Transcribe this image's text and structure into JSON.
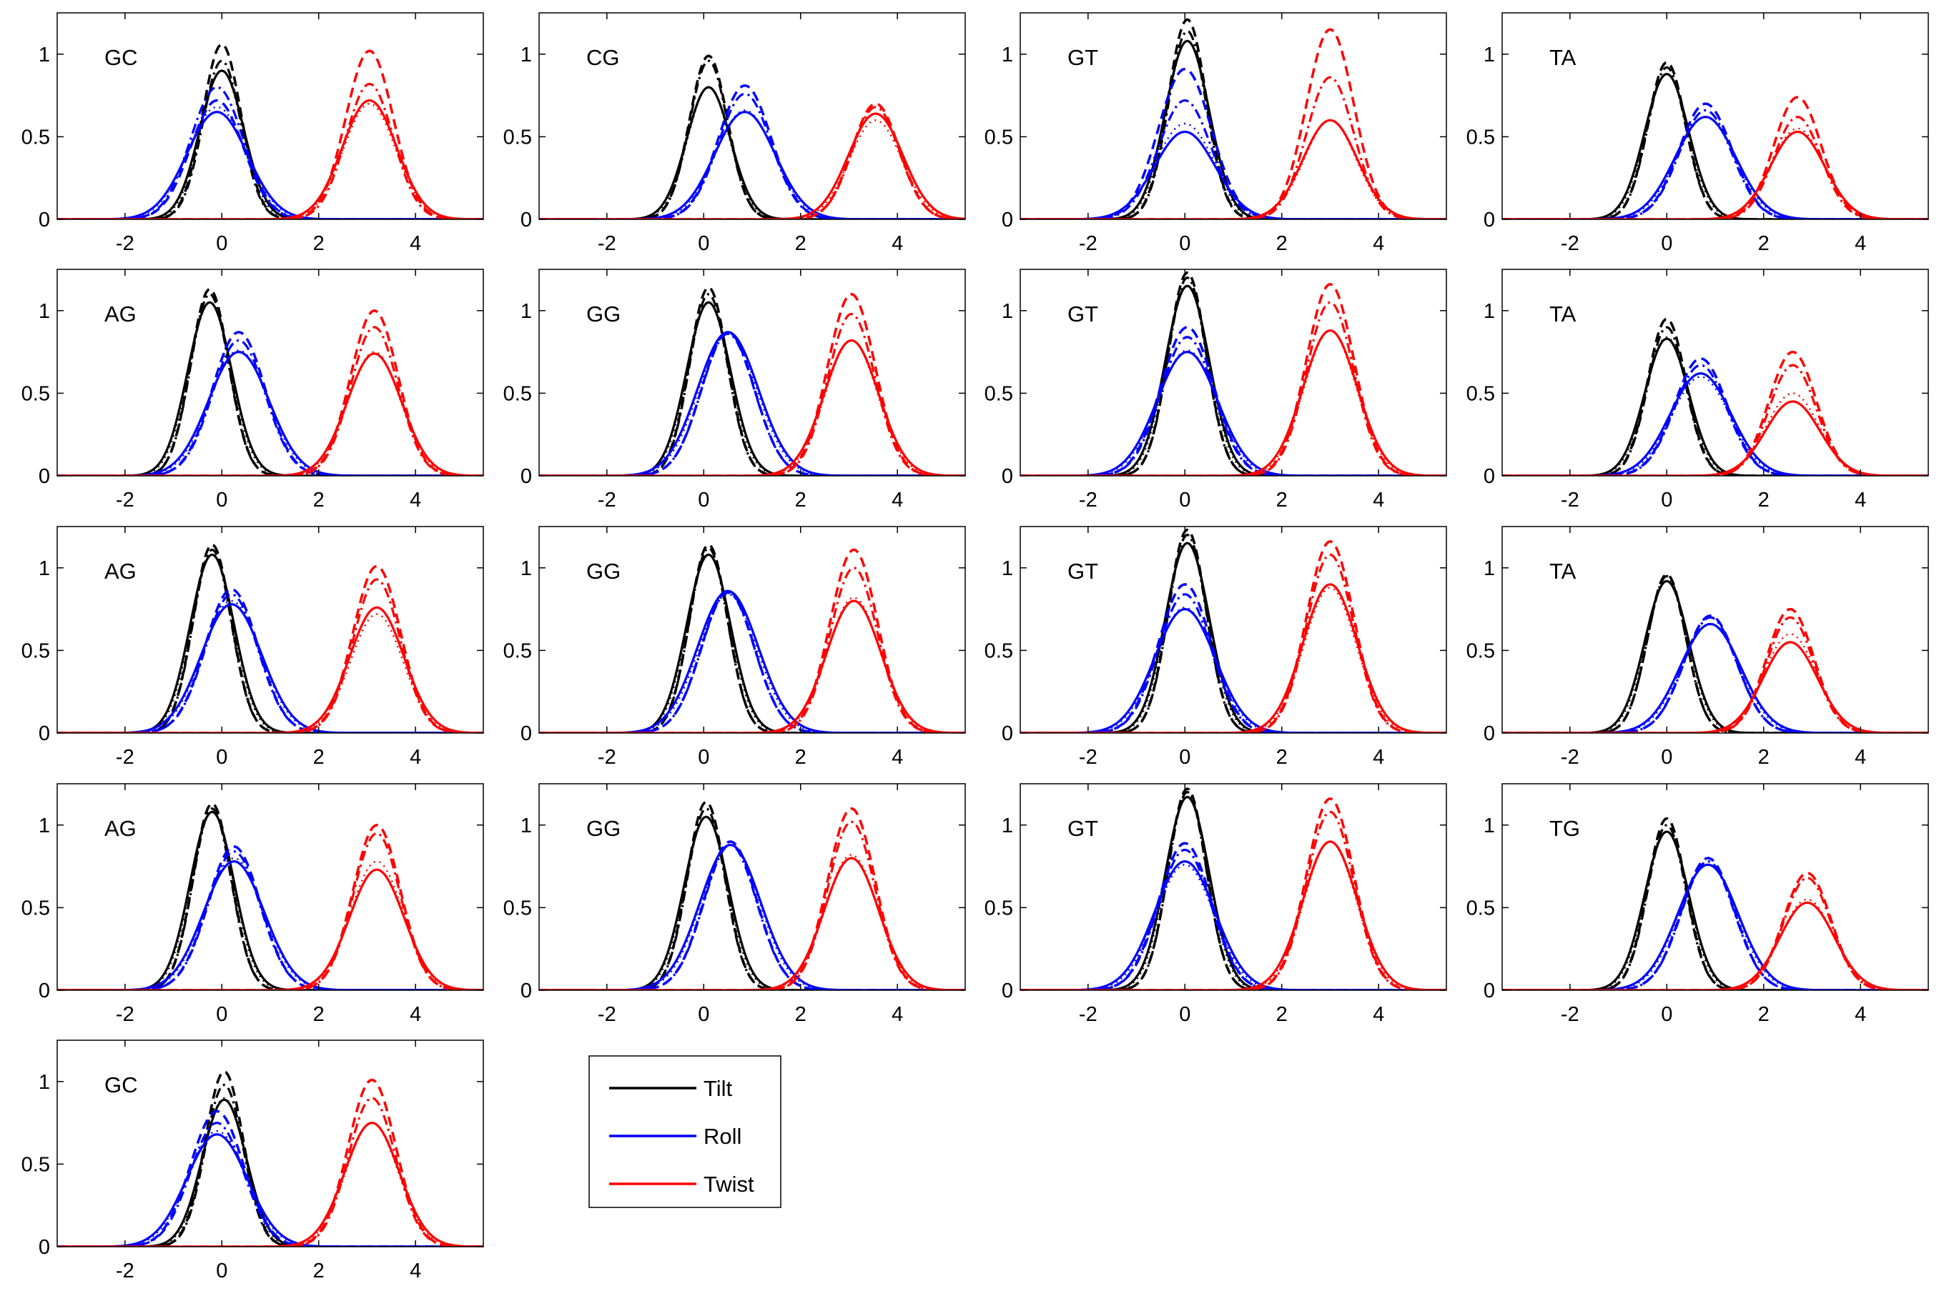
{
  "figure": {
    "colors": {
      "tilt": "#000000",
      "roll": "#0000ff",
      "twist": "#ff0000",
      "axis": "#000000"
    },
    "legend": [
      {
        "key": "tilt",
        "label": "Tilt"
      },
      {
        "key": "roll",
        "label": "Roll"
      },
      {
        "key": "twist",
        "label": "Twist"
      }
    ],
    "x_ticks": [
      "-2",
      "0",
      "2",
      "4"
    ],
    "y_ticks": [
      "0",
      "0.5",
      "1"
    ]
  },
  "chart_data": [
    {
      "type": "line",
      "title": "GC",
      "xlim": [
        -3.4,
        5.4
      ],
      "ylim": [
        0,
        1.25
      ],
      "series": [
        {
          "name": "Tilt",
          "mu": 0.0,
          "peaks": {
            "solid": 0.9,
            "dashed": 1.06,
            "dashdot": 0.96,
            "dotted": 0.9
          }
        },
        {
          "name": "Roll",
          "mu": -0.1,
          "peaks": {
            "solid": 0.65,
            "dashed": 0.72,
            "dashdot": 0.8,
            "dotted": 0.68
          }
        },
        {
          "name": "Twist",
          "mu": 3.05,
          "peaks": {
            "solid": 0.72,
            "dashed": 1.02,
            "dashdot": 0.82,
            "dotted": 0.7
          }
        }
      ]
    },
    {
      "type": "line",
      "title": "CG",
      "xlim": [
        -3.4,
        5.4
      ],
      "ylim": [
        0,
        1.25
      ],
      "series": [
        {
          "name": "Tilt",
          "mu": 0.1,
          "peaks": {
            "solid": 0.8,
            "dashed": 0.99,
            "dashdot": 0.96,
            "dotted": 0.8
          }
        },
        {
          "name": "Roll",
          "mu": 0.85,
          "peaks": {
            "solid": 0.65,
            "dashed": 0.81,
            "dashdot": 0.76,
            "dotted": 0.66
          }
        },
        {
          "name": "Twist",
          "mu": 3.55,
          "peaks": {
            "solid": 0.64,
            "dashed": 0.7,
            "dashdot": 0.68,
            "dotted": 0.6
          }
        }
      ]
    },
    {
      "type": "line",
      "title": "GT",
      "xlim": [
        -3.4,
        5.4
      ],
      "ylim": [
        0,
        1.25
      ],
      "series": [
        {
          "name": "Tilt",
          "mu": 0.05,
          "peaks": {
            "solid": 1.08,
            "dashed": 1.21,
            "dashdot": 1.14,
            "dotted": 1.08
          }
        },
        {
          "name": "Roll",
          "mu": 0.0,
          "peaks": {
            "solid": 0.53,
            "dashed": 0.91,
            "dashdot": 0.72,
            "dotted": 0.58
          }
        },
        {
          "name": "Twist",
          "mu": 3.0,
          "peaks": {
            "solid": 0.6,
            "dashed": 1.15,
            "dashdot": 0.86,
            "dotted": 0.6
          }
        }
      ]
    },
    {
      "type": "line",
      "title": "TA",
      "xlim": [
        -3.4,
        5.4
      ],
      "ylim": [
        0,
        1.25
      ],
      "series": [
        {
          "name": "Tilt",
          "mu": 0.0,
          "peaks": {
            "solid": 0.88,
            "dashed": 0.95,
            "dashdot": 0.92,
            "dotted": 0.88
          }
        },
        {
          "name": "Roll",
          "mu": 0.8,
          "peaks": {
            "solid": 0.62,
            "dashed": 0.7,
            "dashdot": 0.66,
            "dotted": 0.62
          }
        },
        {
          "name": "Twist",
          "mu": 2.7,
          "peaks": {
            "solid": 0.53,
            "dashed": 0.74,
            "dashdot": 0.62,
            "dotted": 0.55
          }
        }
      ]
    },
    {
      "type": "line",
      "title": "AG",
      "xlim": [
        -3.4,
        5.4
      ],
      "ylim": [
        0,
        1.25
      ],
      "series": [
        {
          "name": "Tilt",
          "mu": -0.25,
          "peaks": {
            "solid": 1.05,
            "dashed": 1.13,
            "dashdot": 1.1,
            "dotted": 1.05
          }
        },
        {
          "name": "Roll",
          "mu": 0.35,
          "peaks": {
            "solid": 0.75,
            "dashed": 0.87,
            "dashdot": 0.82,
            "dotted": 0.76
          }
        },
        {
          "name": "Twist",
          "mu": 3.15,
          "peaks": {
            "solid": 0.74,
            "dashed": 1.0,
            "dashdot": 0.9,
            "dotted": 0.75
          }
        }
      ]
    },
    {
      "type": "line",
      "title": "GG",
      "xlim": [
        -3.4,
        5.4
      ],
      "ylim": [
        0,
        1.25
      ],
      "series": [
        {
          "name": "Tilt",
          "mu": 0.1,
          "peaks": {
            "solid": 1.05,
            "dashed": 1.14,
            "dashdot": 1.1,
            "dotted": 1.05
          }
        },
        {
          "name": "Roll",
          "mu": 0.5,
          "peaks": {
            "solid": 0.87,
            "dashed": 0.87,
            "dashdot": 0.86,
            "dotted": 0.86
          }
        },
        {
          "name": "Twist",
          "mu": 3.05,
          "peaks": {
            "solid": 0.82,
            "dashed": 1.1,
            "dashdot": 0.98,
            "dotted": 0.82
          }
        }
      ]
    },
    {
      "type": "line",
      "title": "GT",
      "xlim": [
        -3.4,
        5.4
      ],
      "ylim": [
        0,
        1.25
      ],
      "series": [
        {
          "name": "Tilt",
          "mu": 0.05,
          "peaks": {
            "solid": 1.15,
            "dashed": 1.23,
            "dashdot": 1.2,
            "dotted": 1.15
          }
        },
        {
          "name": "Roll",
          "mu": 0.05,
          "peaks": {
            "solid": 0.75,
            "dashed": 0.9,
            "dashdot": 0.84,
            "dotted": 0.76
          }
        },
        {
          "name": "Twist",
          "mu": 3.0,
          "peaks": {
            "solid": 0.88,
            "dashed": 1.16,
            "dashdot": 1.05,
            "dotted": 0.88
          }
        }
      ]
    },
    {
      "type": "line",
      "title": "TA",
      "xlim": [
        -3.4,
        5.4
      ],
      "ylim": [
        0,
        1.25
      ],
      "series": [
        {
          "name": "Tilt",
          "mu": 0.0,
          "peaks": {
            "solid": 0.83,
            "dashed": 0.95,
            "dashdot": 0.9,
            "dotted": 0.84
          }
        },
        {
          "name": "Roll",
          "mu": 0.7,
          "peaks": {
            "solid": 0.62,
            "dashed": 0.71,
            "dashdot": 0.67,
            "dotted": 0.6
          }
        },
        {
          "name": "Twist",
          "mu": 2.6,
          "peaks": {
            "solid": 0.45,
            "dashed": 0.75,
            "dashdot": 0.67,
            "dotted": 0.5
          }
        }
      ]
    },
    {
      "type": "line",
      "title": "AG",
      "xlim": [
        -3.4,
        5.4
      ],
      "ylim": [
        0,
        1.25
      ],
      "series": [
        {
          "name": "Tilt",
          "mu": -0.2,
          "peaks": {
            "solid": 1.08,
            "dashed": 1.14,
            "dashdot": 1.11,
            "dotted": 1.08
          }
        },
        {
          "name": "Roll",
          "mu": 0.2,
          "peaks": {
            "solid": 0.78,
            "dashed": 0.87,
            "dashdot": 0.84,
            "dotted": 0.8
          }
        },
        {
          "name": "Twist",
          "mu": 3.2,
          "peaks": {
            "solid": 0.76,
            "dashed": 1.01,
            "dashdot": 0.93,
            "dotted": 0.72
          }
        }
      ]
    },
    {
      "type": "line",
      "title": "GG",
      "xlim": [
        -3.4,
        5.4
      ],
      "ylim": [
        0,
        1.25
      ],
      "series": [
        {
          "name": "Tilt",
          "mu": 0.1,
          "peaks": {
            "solid": 1.08,
            "dashed": 1.14,
            "dashdot": 1.12,
            "dotted": 1.08
          }
        },
        {
          "name": "Roll",
          "mu": 0.5,
          "peaks": {
            "solid": 0.86,
            "dashed": 0.86,
            "dashdot": 0.85,
            "dotted": 0.84
          }
        },
        {
          "name": "Twist",
          "mu": 3.1,
          "peaks": {
            "solid": 0.8,
            "dashed": 1.11,
            "dashdot": 1.0,
            "dotted": 0.82
          }
        }
      ]
    },
    {
      "type": "line",
      "title": "GT",
      "xlim": [
        -3.4,
        5.4
      ],
      "ylim": [
        0,
        1.25
      ],
      "series": [
        {
          "name": "Tilt",
          "mu": 0.05,
          "peaks": {
            "solid": 1.15,
            "dashed": 1.23,
            "dashdot": 1.2,
            "dotted": 1.15
          }
        },
        {
          "name": "Roll",
          "mu": 0.0,
          "peaks": {
            "solid": 0.75,
            "dashed": 0.9,
            "dashdot": 0.84,
            "dotted": 0.76
          }
        },
        {
          "name": "Twist",
          "mu": 3.0,
          "peaks": {
            "solid": 0.9,
            "dashed": 1.16,
            "dashdot": 1.08,
            "dotted": 0.88
          }
        }
      ]
    },
    {
      "type": "line",
      "title": "TA",
      "xlim": [
        -3.4,
        5.4
      ],
      "ylim": [
        0,
        1.25
      ],
      "series": [
        {
          "name": "Tilt",
          "mu": 0.0,
          "peaks": {
            "solid": 0.92,
            "dashed": 0.96,
            "dashdot": 0.95,
            "dotted": 0.92
          }
        },
        {
          "name": "Roll",
          "mu": 0.9,
          "peaks": {
            "solid": 0.66,
            "dashed": 0.71,
            "dashdot": 0.7,
            "dotted": 0.66
          }
        },
        {
          "name": "Twist",
          "mu": 2.55,
          "peaks": {
            "solid": 0.55,
            "dashed": 0.75,
            "dashdot": 0.7,
            "dotted": 0.6
          }
        }
      ]
    },
    {
      "type": "line",
      "title": "AG",
      "xlim": [
        -3.4,
        5.4
      ],
      "ylim": [
        0,
        1.25
      ],
      "series": [
        {
          "name": "Tilt",
          "mu": -0.2,
          "peaks": {
            "solid": 1.08,
            "dashed": 1.13,
            "dashdot": 1.1,
            "dotted": 1.08
          }
        },
        {
          "name": "Roll",
          "mu": 0.25,
          "peaks": {
            "solid": 0.78,
            "dashed": 0.87,
            "dashdot": 0.84,
            "dotted": 0.8
          }
        },
        {
          "name": "Twist",
          "mu": 3.2,
          "peaks": {
            "solid": 0.73,
            "dashed": 1.0,
            "dashdot": 0.95,
            "dotted": 0.78
          }
        }
      ]
    },
    {
      "type": "line",
      "title": "GG",
      "xlim": [
        -3.4,
        5.4
      ],
      "ylim": [
        0,
        1.25
      ],
      "series": [
        {
          "name": "Tilt",
          "mu": 0.05,
          "peaks": {
            "solid": 1.05,
            "dashed": 1.14,
            "dashdot": 1.1,
            "dotted": 1.05
          }
        },
        {
          "name": "Roll",
          "mu": 0.55,
          "peaks": {
            "solid": 0.88,
            "dashed": 0.9,
            "dashdot": 0.88,
            "dotted": 0.88
          }
        },
        {
          "name": "Twist",
          "mu": 3.05,
          "peaks": {
            "solid": 0.8,
            "dashed": 1.1,
            "dashdot": 1.02,
            "dotted": 0.82
          }
        }
      ]
    },
    {
      "type": "line",
      "title": "GT",
      "xlim": [
        -3.4,
        5.4
      ],
      "ylim": [
        0,
        1.25
      ],
      "series": [
        {
          "name": "Tilt",
          "mu": 0.05,
          "peaks": {
            "solid": 1.17,
            "dashed": 1.22,
            "dashdot": 1.2,
            "dotted": 1.17
          }
        },
        {
          "name": "Roll",
          "mu": 0.0,
          "peaks": {
            "solid": 0.78,
            "dashed": 0.89,
            "dashdot": 0.85,
            "dotted": 0.76
          }
        },
        {
          "name": "Twist",
          "mu": 3.0,
          "peaks": {
            "solid": 0.9,
            "dashed": 1.16,
            "dashdot": 1.08,
            "dotted": 0.9
          }
        }
      ]
    },
    {
      "type": "line",
      "title": "TG",
      "xlim": [
        -3.4,
        5.4
      ],
      "ylim": [
        0,
        1.25
      ],
      "series": [
        {
          "name": "Tilt",
          "mu": 0.0,
          "peaks": {
            "solid": 0.96,
            "dashed": 1.04,
            "dashdot": 1.0,
            "dotted": 0.96
          }
        },
        {
          "name": "Roll",
          "mu": 0.85,
          "peaks": {
            "solid": 0.76,
            "dashed": 0.8,
            "dashdot": 0.78,
            "dotted": 0.76
          }
        },
        {
          "name": "Twist",
          "mu": 2.9,
          "peaks": {
            "solid": 0.53,
            "dashed": 0.71,
            "dashdot": 0.68,
            "dotted": 0.55
          }
        }
      ]
    },
    {
      "type": "line",
      "title": "GC",
      "xlim": [
        -3.4,
        5.4
      ],
      "ylim": [
        0,
        1.25
      ],
      "series": [
        {
          "name": "Tilt",
          "mu": 0.05,
          "peaks": {
            "solid": 0.89,
            "dashed": 1.06,
            "dashdot": 0.98,
            "dotted": 0.9
          }
        },
        {
          "name": "Roll",
          "mu": -0.1,
          "peaks": {
            "solid": 0.68,
            "dashed": 0.82,
            "dashdot": 0.75,
            "dotted": 0.7
          }
        },
        {
          "name": "Twist",
          "mu": 3.1,
          "peaks": {
            "solid": 0.75,
            "dashed": 1.01,
            "dashdot": 0.9,
            "dotted": 0.75
          }
        }
      ]
    }
  ]
}
